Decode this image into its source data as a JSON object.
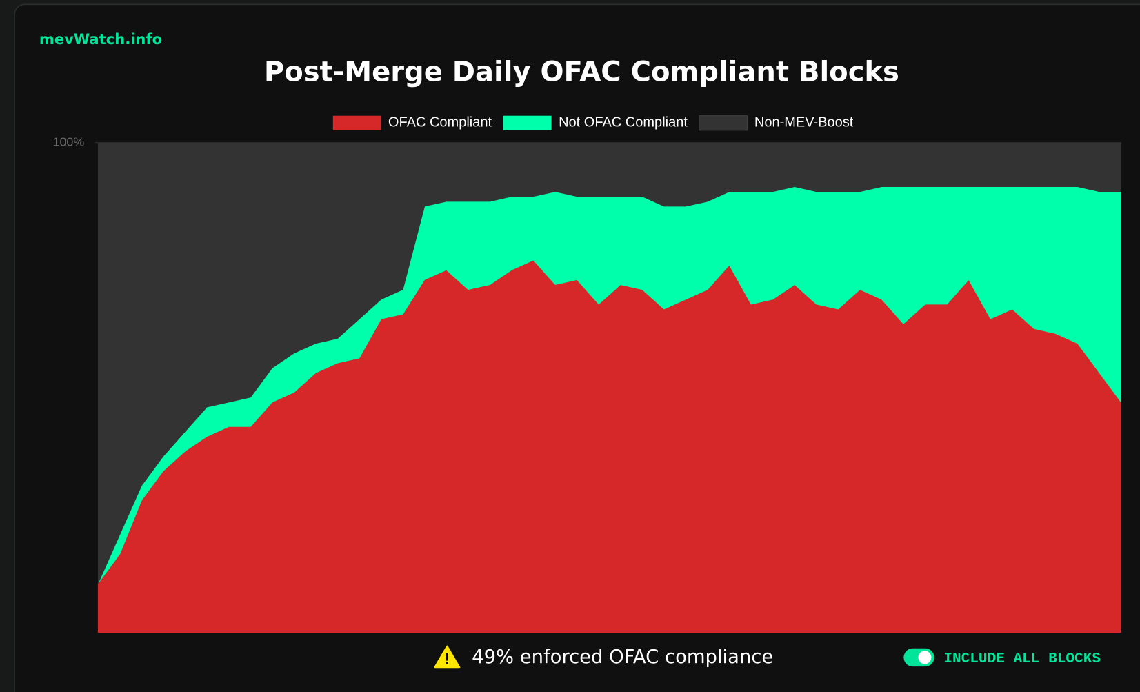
{
  "brand": "mevWatch.info",
  "footer": {
    "compliance": "49% enforced OFAC compliance"
  },
  "toggle": {
    "label": "INCLUDE ALL BLOCKS",
    "on": true
  },
  "chart_data": {
    "type": "area",
    "stacked": true,
    "title": "Post-Merge Daily OFAC Compliant Blocks",
    "ylim": [
      0,
      100
    ],
    "yticks": [
      {
        "value": 100,
        "label": "100%"
      }
    ],
    "grid": false,
    "series": [
      {
        "name": "OFAC Compliant",
        "color": "#d62828",
        "values": [
          10,
          16,
          27,
          33,
          37,
          40,
          42,
          42,
          47,
          49,
          53,
          55,
          56,
          64,
          65,
          72,
          74,
          70,
          71,
          74,
          76,
          71,
          72,
          67,
          71,
          70,
          66,
          68,
          70,
          75,
          67,
          68,
          71,
          67,
          66,
          70,
          68,
          63,
          67,
          67,
          72,
          64,
          66,
          62,
          61,
          59,
          53,
          47
        ]
      },
      {
        "name": "Not OFAC Compliant",
        "color": "#00ffaa",
        "values": [
          0,
          4,
          3,
          3,
          4,
          6,
          5,
          6,
          7,
          8,
          6,
          5,
          8,
          4,
          5,
          15,
          14,
          18,
          17,
          15,
          13,
          19,
          17,
          22,
          18,
          19,
          21,
          19,
          18,
          15,
          23,
          22,
          20,
          23,
          24,
          20,
          23,
          28,
          24,
          24,
          19,
          27,
          25,
          29,
          30,
          32,
          37,
          43
        ]
      },
      {
        "name": "Non-MEV-Boost",
        "color": "#333333",
        "values": [
          90,
          80,
          70,
          64,
          59,
          54,
          53,
          52,
          46,
          43,
          41,
          40,
          36,
          32,
          30,
          13,
          12,
          12,
          12,
          11,
          11,
          10,
          11,
          11,
          11,
          11,
          13,
          13,
          12,
          10,
          10,
          10,
          9,
          10,
          10,
          10,
          9,
          9,
          9,
          9,
          9,
          9,
          9,
          9,
          9,
          9,
          10,
          10
        ]
      }
    ]
  }
}
